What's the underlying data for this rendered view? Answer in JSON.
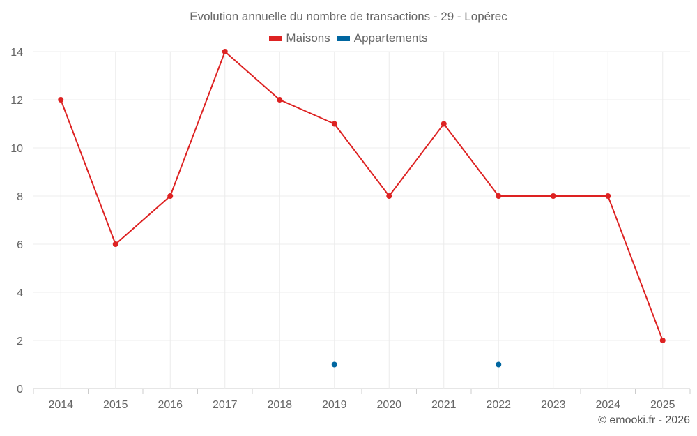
{
  "chart_data": {
    "type": "line",
    "title": "Evolution annuelle du nombre de transactions - 29 - Lopérec",
    "categories": [
      "2014",
      "2015",
      "2016",
      "2017",
      "2018",
      "2019",
      "2020",
      "2021",
      "2022",
      "2023",
      "2024",
      "2025"
    ],
    "series": [
      {
        "name": "Maisons",
        "color": "#dd2222",
        "values": [
          12,
          6,
          8,
          14,
          12,
          11,
          8,
          11,
          8,
          8,
          8,
          2
        ]
      },
      {
        "name": "Appartements",
        "color": "#0066a0",
        "values": [
          null,
          null,
          null,
          null,
          null,
          1,
          null,
          null,
          1,
          null,
          null,
          null
        ]
      }
    ],
    "ylim": [
      0,
      14
    ],
    "yticks": [
      0,
      2,
      4,
      6,
      8,
      10,
      12,
      14
    ],
    "grid": true,
    "legend": "top-center",
    "xlabel": "",
    "ylabel": ""
  },
  "credit": "© emooki.fr - 2026"
}
